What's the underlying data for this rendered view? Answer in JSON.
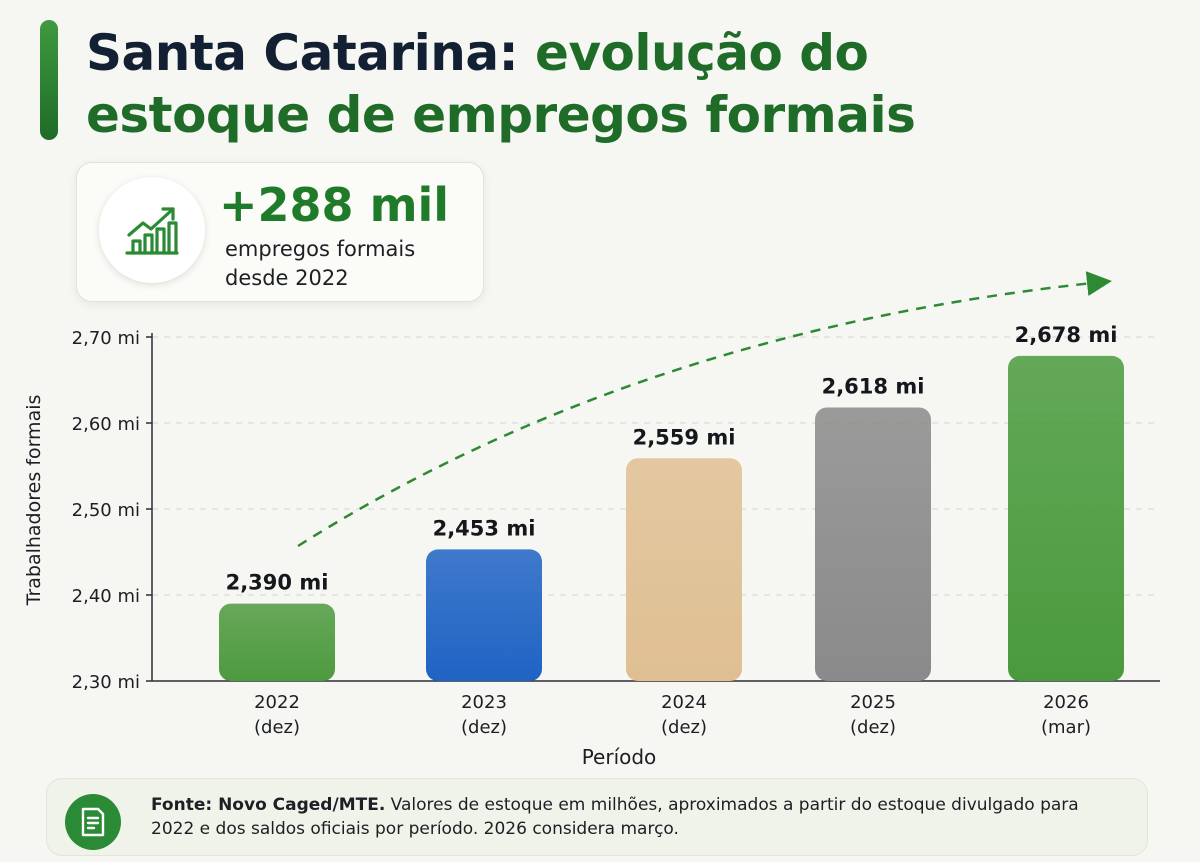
{
  "header": {
    "title_part1": "Santa Catarina:",
    "title_part2": "evolução do",
    "title_line2": "estoque de empregos formais"
  },
  "kpi": {
    "value": "+288 mil",
    "description": "empregos formais desde 2022",
    "icon": "growth-chart-icon"
  },
  "chart_data": {
    "type": "bar",
    "categories": [
      "2022\n(dez)",
      "2023\n(dez)",
      "2024\n(dez)",
      "2025\n(dez)",
      "2026\n(mar)"
    ],
    "category_years": [
      "2022",
      "2023",
      "2024",
      "2025",
      "2026"
    ],
    "category_periods": [
      "(dez)",
      "(dez)",
      "(dez)",
      "(dez)",
      "(mar)"
    ],
    "values": [
      2.39,
      2.453,
      2.559,
      2.618,
      2.678
    ],
    "value_labels": [
      "2,390 mi",
      "2,453 mi",
      "2,559 mi",
      "2,618 mi",
      "2,678 mi"
    ],
    "bar_colors": [
      "#4e9a3f",
      "#1f63c4",
      "#dfbf92",
      "#8a8a8a",
      "#4a9a3d"
    ],
    "xlabel": "Período",
    "ylabel": "Trabalhadores formais",
    "ylim": [
      2.3,
      2.7
    ],
    "yticks": [
      2.3,
      2.4,
      2.5,
      2.6,
      2.7
    ],
    "ytick_labels": [
      "2,30 mi",
      "2,40 mi",
      "2,50 mi",
      "2,60 mi",
      "2,70 mi"
    ],
    "grid": true,
    "trend_arrow": true,
    "trend_color": "#2d8a33"
  },
  "footer": {
    "source_bold": "Fonte: Novo Caged/MTE.",
    "source_text": " Valores de estoque em milhões, aproximados a partir do estoque divulgado para 2022 e dos saldos oficiais por período. 2026 considera março.",
    "icon": "document-icon"
  },
  "colors": {
    "accent_green": "#1f6b28",
    "kpi_green": "#1f7a2a",
    "background": "#f6f7f3"
  }
}
